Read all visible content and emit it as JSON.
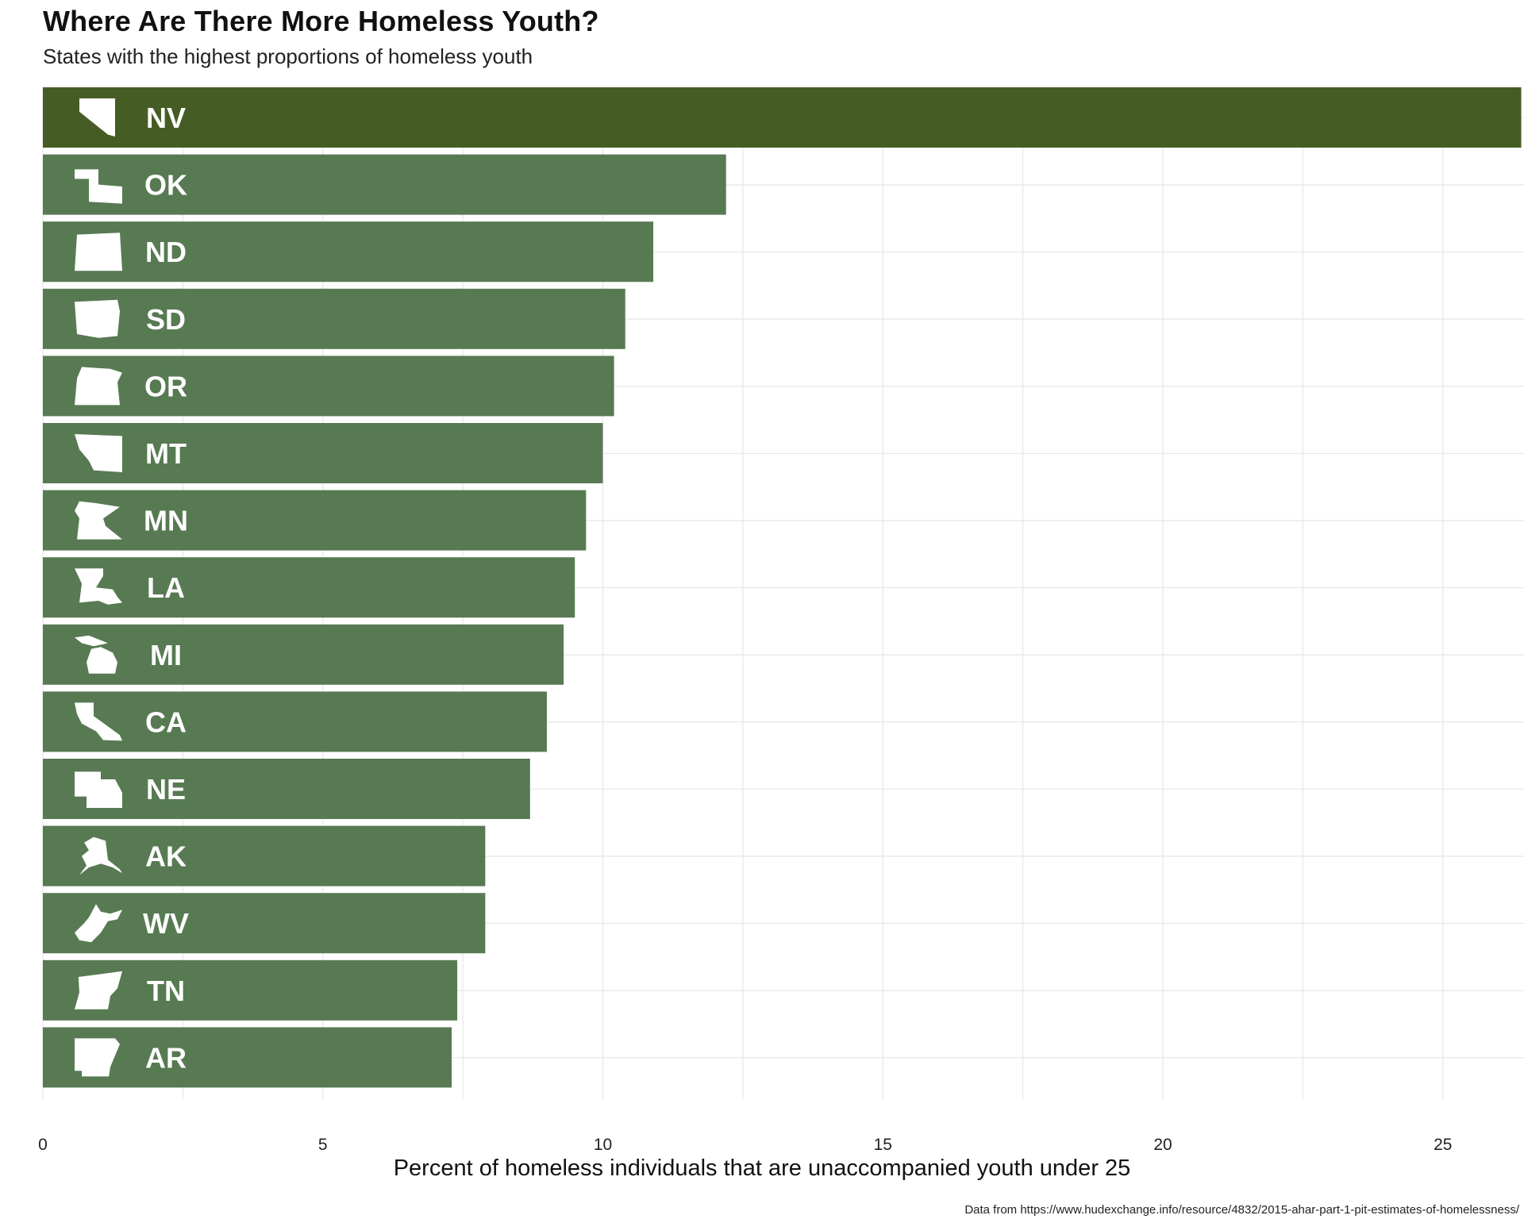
{
  "title": "Where Are There More Homeless Youth?",
  "subtitle": "States with the highest proportions of homeless youth",
  "source": "Data from https://www.hudexchange.info/resource/4832/2015-ahar-part-1-pit-estimates-of-homelessness/",
  "colors": {
    "bar": "#577a52",
    "highlight": "#465c25",
    "grid": "#e6e6e6",
    "icon": "#ffffff"
  },
  "chart_data": {
    "type": "bar",
    "orientation": "horizontal",
    "title": "Where Are There More Homeless Youth?",
    "subtitle": "States with the highest proportions of homeless youth",
    "xlabel": "Percent of homeless individuals that are unaccompanied youth under 25",
    "ylabel": "",
    "xlim": [
      0,
      26.4
    ],
    "x_ticks": [
      0,
      5,
      10,
      15,
      20,
      25
    ],
    "grid": true,
    "categories": [
      "NV",
      "OK",
      "ND",
      "SD",
      "OR",
      "MT",
      "MN",
      "LA",
      "MI",
      "CA",
      "NE",
      "AK",
      "WV",
      "TN",
      "AR"
    ],
    "values": [
      26.4,
      12.2,
      10.9,
      10.4,
      10.2,
      10.0,
      9.7,
      9.5,
      9.3,
      9.0,
      8.7,
      7.9,
      7.9,
      7.4,
      7.3
    ],
    "highlighted": "NV",
    "icons": [
      "nevada-icon",
      "oklahoma-icon",
      "north-dakota-icon",
      "south-dakota-icon",
      "oregon-icon",
      "montana-icon",
      "minnesota-icon",
      "louisiana-icon",
      "michigan-icon",
      "california-icon",
      "nebraska-icon",
      "alaska-icon",
      "west-virginia-icon",
      "tennessee-icon",
      "arkansas-icon"
    ]
  }
}
